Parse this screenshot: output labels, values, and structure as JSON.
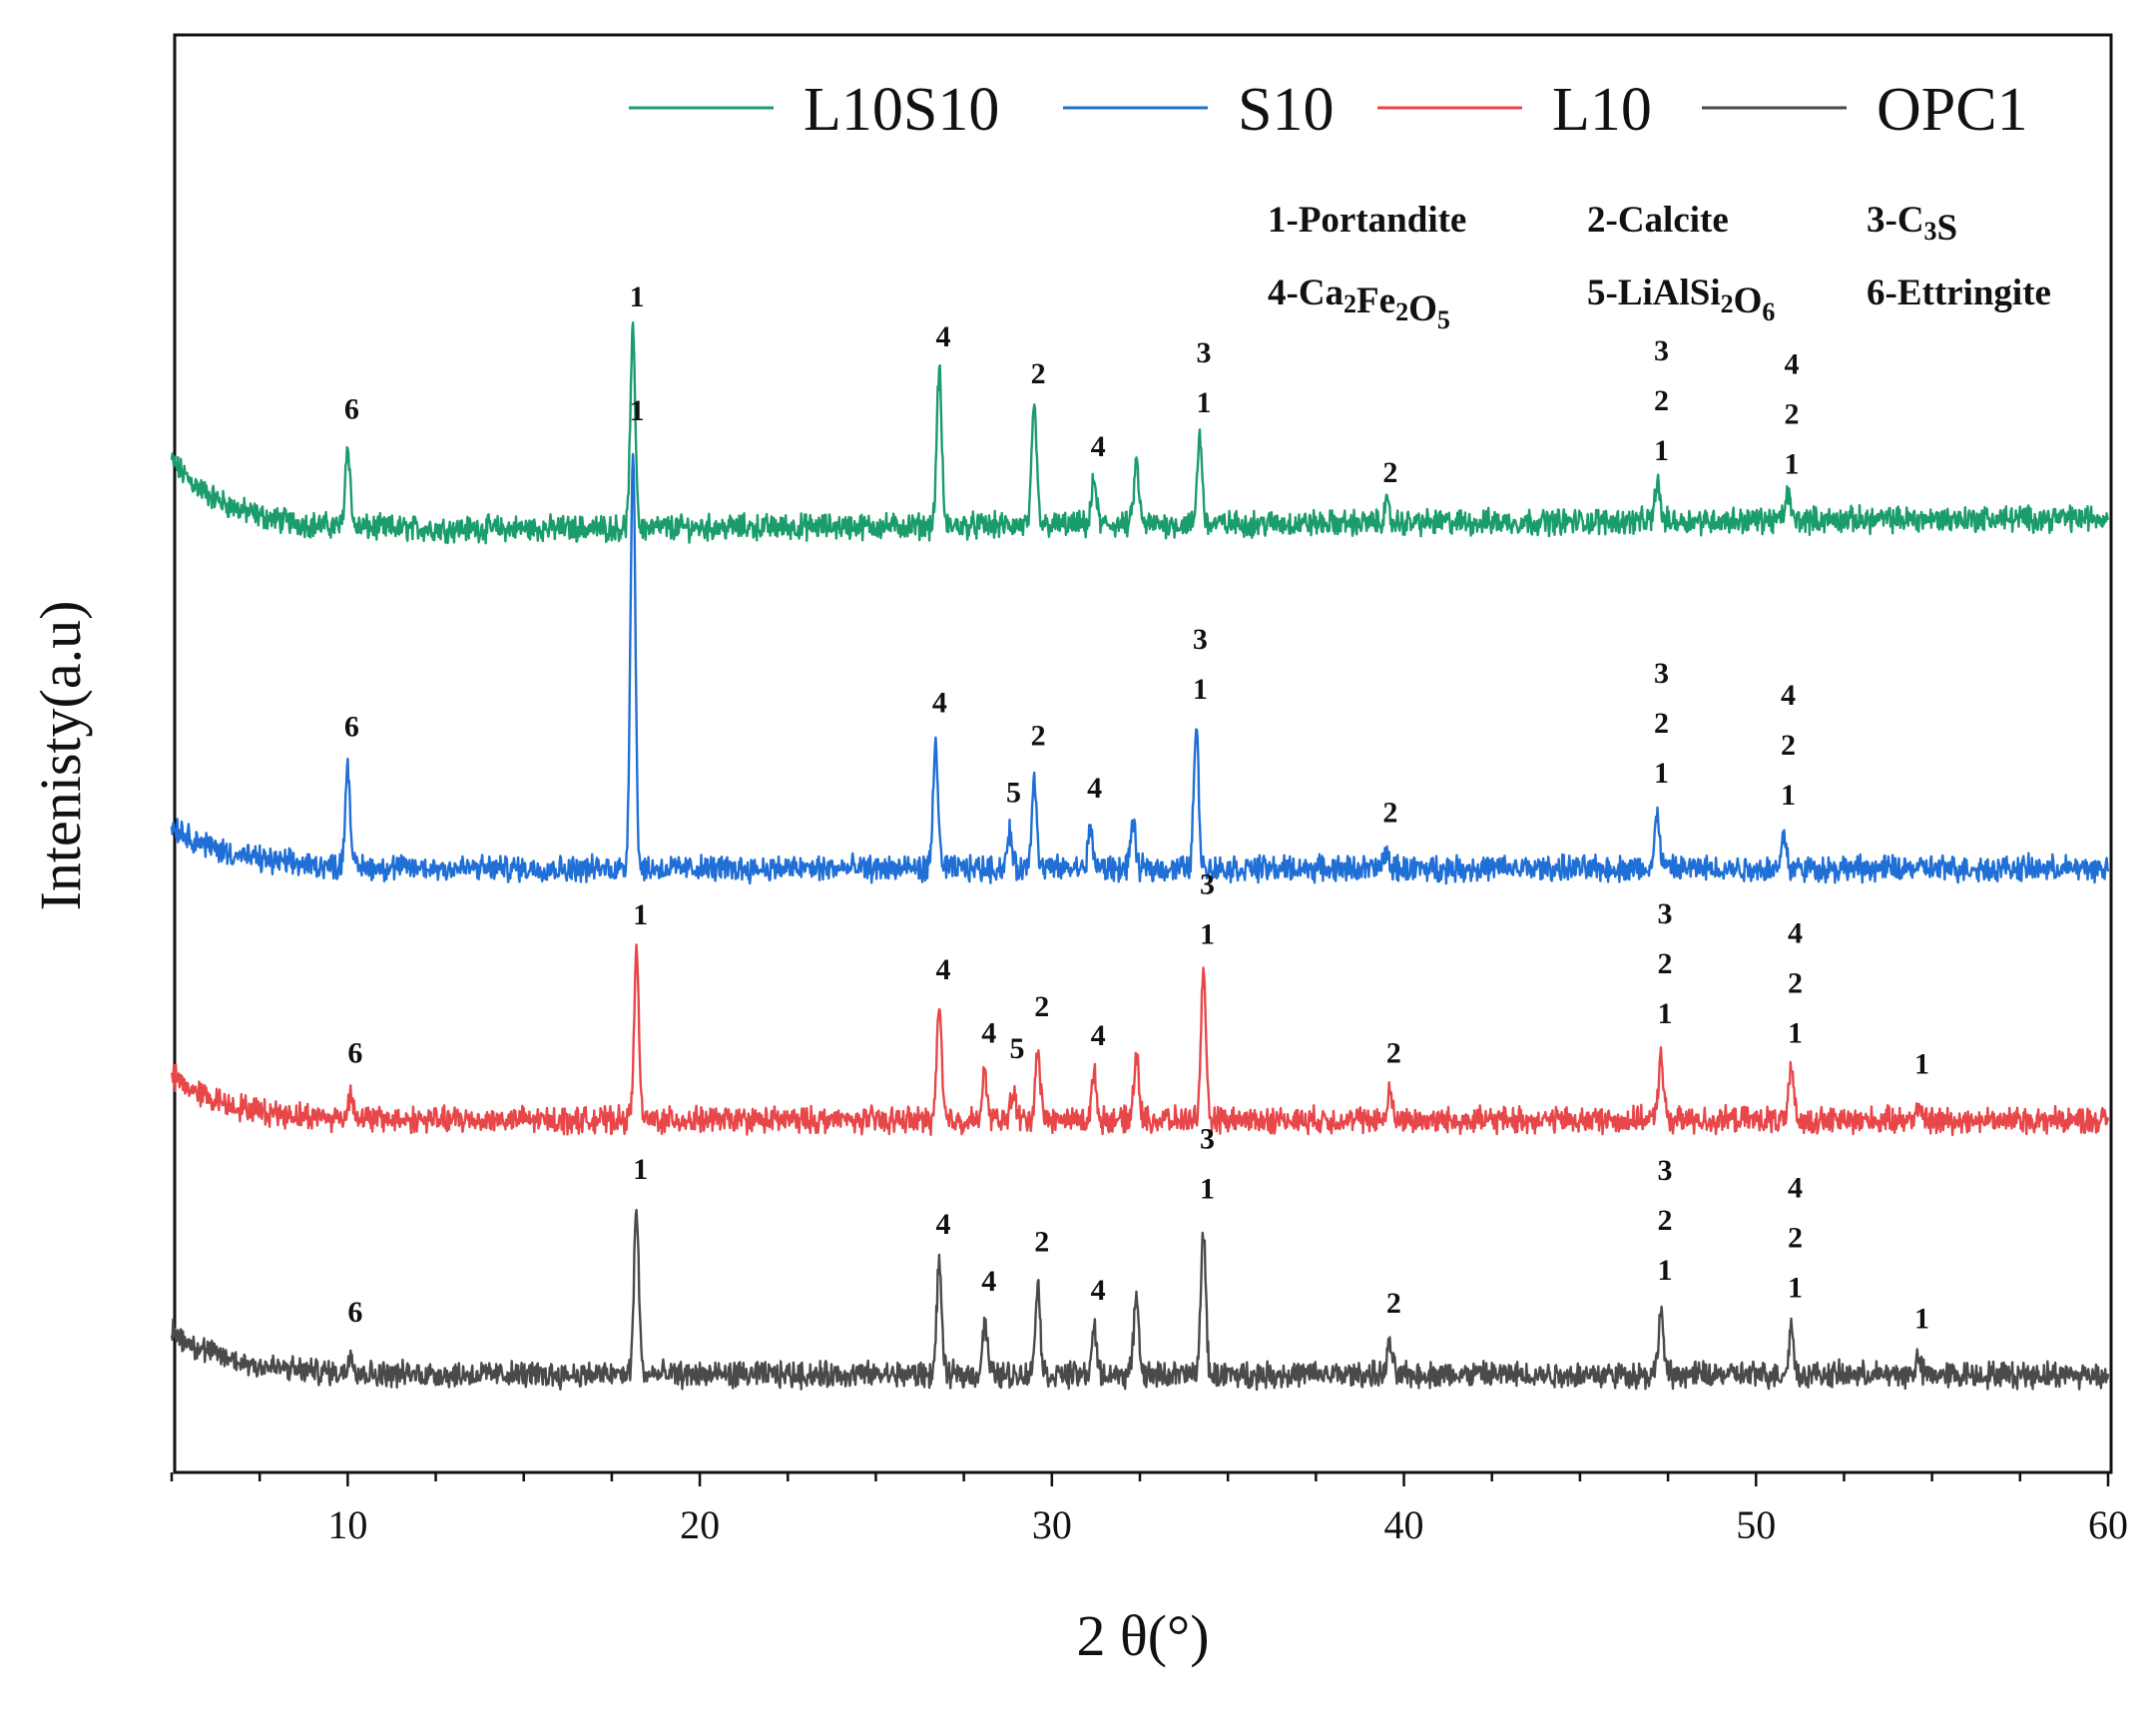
{
  "chart_data": {
    "type": "line",
    "xlabel": "2 θ(°)",
    "ylabel": "Intenisty(a.u)",
    "xlim": [
      5,
      60
    ],
    "x_ticks": [
      10,
      20,
      30,
      40,
      50,
      60
    ],
    "x_tick_labels": [
      "10",
      "20",
      "30",
      "40",
      "50",
      "60"
    ],
    "grid": false,
    "legend_position": "top",
    "legend": [
      {
        "name": "L10S10",
        "color": "#1a9c6b"
      },
      {
        "name": "S10",
        "color": "#1f6fd6"
      },
      {
        "name": "L10",
        "color": "#e8474a"
      },
      {
        "name": "OPC1",
        "color": "#4a4a4a"
      }
    ],
    "phase_legend": [
      {
        "number": "1",
        "label": "1-Portandite",
        "parts": [
          {
            "t": "1-Portandite",
            "sub": false
          }
        ]
      },
      {
        "number": "2",
        "label": "2-Calcite",
        "parts": [
          {
            "t": "2-Calcite",
            "sub": false
          }
        ]
      },
      {
        "number": "3",
        "label": "3-C3S",
        "parts": [
          {
            "t": "3-C",
            "sub": false
          },
          {
            "t": "3",
            "sub": true
          },
          {
            "t": "S",
            "sub": false
          }
        ]
      },
      {
        "number": "4",
        "label": "4-Ca2Fe2O5",
        "parts": [
          {
            "t": "4-Ca",
            "sub": false
          },
          {
            "t": "2",
            "sub": true
          },
          {
            "t": "Fe",
            "sub": false
          },
          {
            "t": "2",
            "sub": true
          },
          {
            "t": "O",
            "sub": false
          },
          {
            "t": "5",
            "sub": true
          }
        ]
      },
      {
        "number": "5",
        "label": "5-LiAlSi2O6",
        "parts": [
          {
            "t": "5-LiAlSi",
            "sub": false
          },
          {
            "t": "2",
            "sub": true
          },
          {
            "t": "O",
            "sub": false
          },
          {
            "t": "6",
            "sub": true
          }
        ]
      },
      {
        "number": "6",
        "label": "6-Ettringite",
        "parts": [
          {
            "t": "6-Ettringite",
            "sub": false
          }
        ]
      }
    ],
    "series": [
      {
        "name": "L10S10",
        "color": "#1a9c6b",
        "baseline_end": 0.6,
        "start_rise": 3.2,
        "peaks": [
          {
            "x": 10.0,
            "h": 3.7,
            "labels": [
              "6"
            ]
          },
          {
            "x": 18.1,
            "h": 8.8,
            "labels": [
              "1"
            ]
          },
          {
            "x": 26.8,
            "h": 7.0,
            "labels": [
              "4"
            ]
          },
          {
            "x": 29.5,
            "h": 5.3,
            "labels": [
              "2"
            ]
          },
          {
            "x": 31.2,
            "h": 2.0,
            "labels": [
              "4"
            ]
          },
          {
            "x": 32.4,
            "h": 2.8,
            "labels": []
          },
          {
            "x": 34.2,
            "h": 4.0,
            "labels": [
              "3",
              "1"
            ]
          },
          {
            "x": 39.5,
            "h": 0.8,
            "labels": [
              "2"
            ]
          },
          {
            "x": 47.2,
            "h": 1.8,
            "labels": [
              "3",
              "2",
              "1"
            ]
          },
          {
            "x": 50.9,
            "h": 1.2,
            "labels": [
              "4",
              "2",
              "1"
            ]
          }
        ]
      },
      {
        "name": "S10",
        "color": "#1f6fd6",
        "baseline_end": 0.0,
        "start_rise": 2.0,
        "peaks": [
          {
            "x": 10.0,
            "h": 4.6,
            "labels": [
              "6"
            ]
          },
          {
            "x": 18.1,
            "h": 19.0,
            "labels": [
              "1"
            ]
          },
          {
            "x": 26.7,
            "h": 5.7,
            "labels": [
              "4"
            ]
          },
          {
            "x": 28.8,
            "h": 1.6,
            "labels": [
              "5"
            ]
          },
          {
            "x": 29.5,
            "h": 4.2,
            "labels": [
              "2"
            ]
          },
          {
            "x": 31.1,
            "h": 1.8,
            "labels": [
              "4"
            ]
          },
          {
            "x": 32.3,
            "h": 2.0,
            "labels": []
          },
          {
            "x": 34.1,
            "h": 6.3,
            "labels": [
              "3",
              "1"
            ]
          },
          {
            "x": 39.5,
            "h": 0.7,
            "labels": [
              "2"
            ]
          },
          {
            "x": 47.2,
            "h": 2.5,
            "labels": [
              "3",
              "2",
              "1"
            ]
          },
          {
            "x": 50.8,
            "h": 1.5,
            "labels": [
              "4",
              "2",
              "1"
            ]
          }
        ]
      },
      {
        "name": "L10",
        "color": "#e8474a",
        "baseline_end": 0.0,
        "start_rise": 2.0,
        "peaks": [
          {
            "x": 10.1,
            "h": 1.2,
            "labels": [
              "6"
            ]
          },
          {
            "x": 18.2,
            "h": 7.5,
            "labels": [
              "1"
            ]
          },
          {
            "x": 26.8,
            "h": 5.0,
            "labels": [
              "4"
            ]
          },
          {
            "x": 28.1,
            "h": 2.1,
            "labels": [
              "4"
            ]
          },
          {
            "x": 28.9,
            "h": 1.4,
            "labels": [
              "5"
            ]
          },
          {
            "x": 29.6,
            "h": 3.3,
            "labels": [
              "2"
            ]
          },
          {
            "x": 31.2,
            "h": 2.0,
            "labels": [
              "4"
            ]
          },
          {
            "x": 32.4,
            "h": 3.1,
            "labels": []
          },
          {
            "x": 34.3,
            "h": 6.6,
            "labels": [
              "3",
              "1"
            ]
          },
          {
            "x": 39.6,
            "h": 1.2,
            "labels": [
              "2"
            ]
          },
          {
            "x": 47.3,
            "h": 3.0,
            "labels": [
              "3",
              "2",
              "1"
            ]
          },
          {
            "x": 51.0,
            "h": 2.1,
            "labels": [
              "4",
              "2",
              "1"
            ]
          },
          {
            "x": 54.6,
            "h": 0.7,
            "labels": [
              "1"
            ]
          }
        ]
      },
      {
        "name": "OPC1",
        "color": "#4a4a4a",
        "baseline_end": 0.0,
        "start_rise": 2.0,
        "peaks": [
          {
            "x": 10.1,
            "h": 1.0,
            "labels": [
              "6"
            ]
          },
          {
            "x": 18.2,
            "h": 7.5,
            "labels": [
              "1"
            ]
          },
          {
            "x": 26.8,
            "h": 5.0,
            "labels": [
              "4"
            ]
          },
          {
            "x": 28.1,
            "h": 2.4,
            "labels": [
              "4"
            ]
          },
          {
            "x": 29.6,
            "h": 4.2,
            "labels": [
              "2"
            ]
          },
          {
            "x": 31.2,
            "h": 2.0,
            "labels": [
              "4"
            ]
          },
          {
            "x": 32.4,
            "h": 3.7,
            "labels": []
          },
          {
            "x": 34.3,
            "h": 6.6,
            "labels": [
              "3",
              "1"
            ]
          },
          {
            "x": 39.6,
            "h": 1.4,
            "labels": [
              "2"
            ]
          },
          {
            "x": 47.3,
            "h": 2.9,
            "labels": [
              "3",
              "2",
              "1"
            ]
          },
          {
            "x": 51.0,
            "h": 2.1,
            "labels": [
              "4",
              "2",
              "1"
            ]
          },
          {
            "x": 54.6,
            "h": 0.7,
            "labels": [
              "1"
            ]
          }
        ]
      }
    ]
  }
}
